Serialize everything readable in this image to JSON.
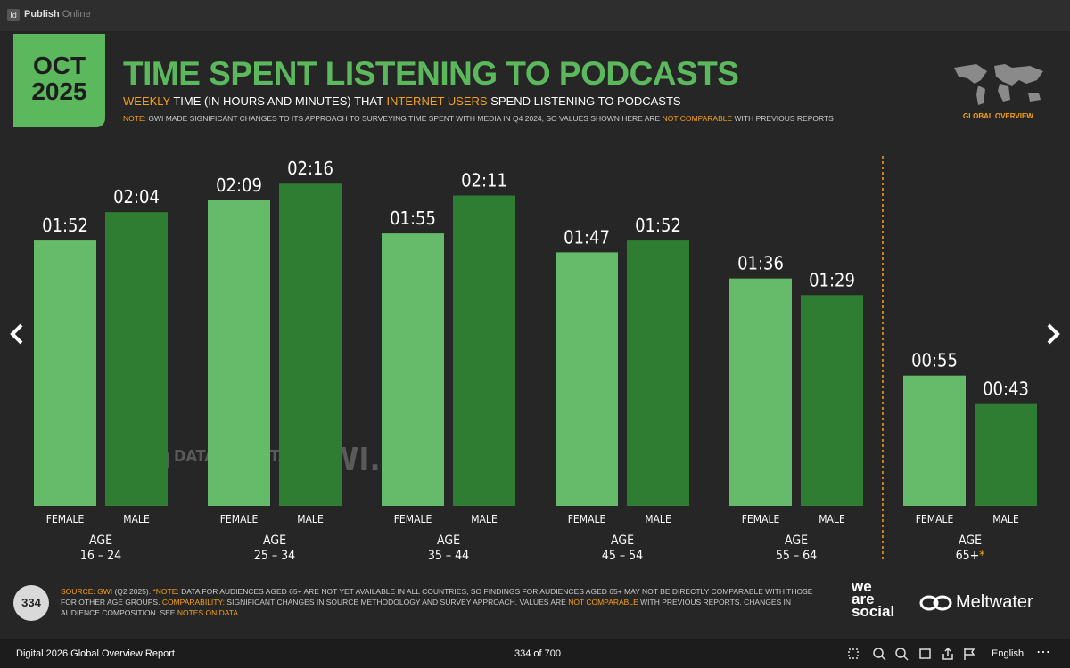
{
  "app_bar": {
    "badge": "Id",
    "title": "Publish",
    "subtitle": "Online"
  },
  "slide": {
    "badge": {
      "month": "OCT",
      "year": "2025"
    },
    "title": "TIME SPENT LISTENING TO PODCASTS",
    "subtitle": [
      {
        "text": "WEEKLY",
        "highlight": true
      },
      {
        "text": " TIME (IN HOURS AND MINUTES) THAT ",
        "highlight": false
      },
      {
        "text": "INTERNET USERS",
        "highlight": true
      },
      {
        "text": " SPEND LISTENING TO PODCASTS",
        "highlight": false
      }
    ],
    "note": [
      {
        "text": "NOTE:",
        "highlight": true
      },
      {
        "text": " GWI MADE SIGNIFICANT CHANGES TO ITS APPROACH TO SURVEYING TIME SPENT WITH MEDIA IN Q4 2024, SO VALUES SHOWN HERE ARE ",
        "highlight": false
      },
      {
        "text": "NOT COMPARABLE",
        "highlight": true
      },
      {
        "text": " WITH PREVIOUS REPORTS",
        "highlight": false
      }
    ],
    "map_label": "GLOBAL OVERVIEW",
    "watermarks": [
      "DATAREPORTAL",
      "GWI."
    ],
    "chart_data": {
      "type": "bar",
      "category_prefix": "AGE",
      "categories": [
        "16 – 24",
        "25 – 34",
        "35 – 44",
        "45 – 54",
        "55 – 64",
        "65+"
      ],
      "footnote_marker": "*",
      "series": [
        {
          "name": "FEMALE",
          "color": "#66bb6a",
          "values": [
            112,
            129,
            115,
            107,
            96,
            55
          ],
          "value_labels": [
            "01:52",
            "02:09",
            "01:55",
            "01:47",
            "01:36",
            "00:55"
          ]
        },
        {
          "name": "MALE",
          "color": "#2e7d32",
          "values": [
            124,
            136,
            131,
            112,
            89,
            43
          ],
          "value_labels": [
            "02:04",
            "02:16",
            "02:11",
            "01:52",
            "01:29",
            "00:43"
          ]
        }
      ]
    },
    "page_number": "334",
    "source": [
      {
        "text": "SOURCE:",
        "highlight": true
      },
      {
        "text": " GWI",
        "highlight": true
      },
      {
        "text": " (Q2 2025). ",
        "highlight": false
      },
      {
        "text": "*NOTE:",
        "highlight": true
      },
      {
        "text": " DATA FOR AUDIENCES AGED 65+ ARE NOT YET AVAILABLE IN ALL COUNTRIES, SO FINDINGS FOR AUDIENCES AGED 65+ MAY NOT BE DIRECTLY COMPARABLE WITH THOSE FOR OTHER AGE GROUPS. ",
        "highlight": false
      },
      {
        "text": "COMPARABILITY:",
        "highlight": true
      },
      {
        "text": " SIGNIFICANT CHANGES IN SOURCE METHODOLOGY AND SURVEY APPROACH. VALUES ARE ",
        "highlight": false
      },
      {
        "text": "NOT COMPARABLE",
        "highlight": true
      },
      {
        "text": " WITH PREVIOUS REPORTS. CHANGES IN AUDIENCE COMPOSITION. SEE ",
        "highlight": false
      },
      {
        "text": "NOTES ON DATA",
        "highlight": true
      },
      {
        "text": ".",
        "highlight": false
      }
    ],
    "logos": {
      "wearesocial": [
        "we",
        "are",
        "social"
      ],
      "meltwater": "Meltwater"
    }
  },
  "bottom_bar": {
    "report": "Digital 2026 Global Overview Report",
    "pager": "334 of 700",
    "language": "English"
  }
}
